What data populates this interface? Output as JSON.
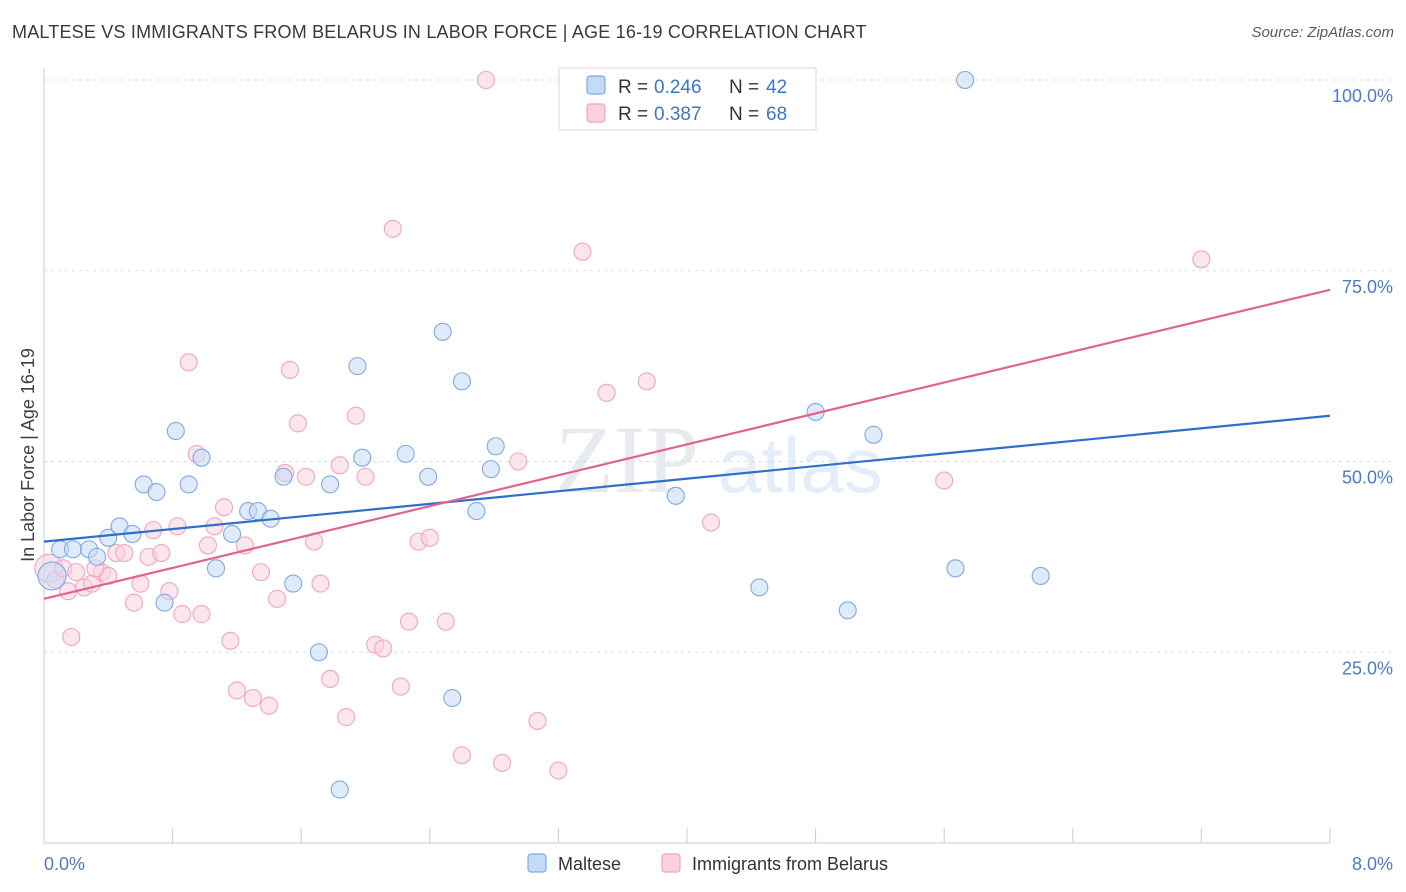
{
  "header": {
    "title": "MALTESE VS IMMIGRANTS FROM BELARUS IN LABOR FORCE | AGE 16-19 CORRELATION CHART",
    "source": "Source: ZipAtlas.com"
  },
  "watermark": {
    "part1": "ZIP",
    "part2": "atlas"
  },
  "chart_data": {
    "type": "scatter",
    "title": "MALTESE VS IMMIGRANTS FROM BELARUS IN LABOR FORCE | AGE 16-19 CORRELATION CHART",
    "ylabel": "In Labor Force | Age 16-19",
    "xlabel": "",
    "xlim": [
      0,
      8
    ],
    "ylim": [
      0,
      100
    ],
    "x_ticks_labels": {
      "left": "0.0%",
      "right": "8.0%"
    },
    "y_ticks": [
      {
        "value": 25,
        "label": "25.0%"
      },
      {
        "value": 50,
        "label": "50.0%"
      },
      {
        "value": 75,
        "label": "75.0%"
      },
      {
        "value": 100,
        "label": "100.0%"
      }
    ],
    "grid": true,
    "legend": {
      "position": "top-center",
      "entries": [
        {
          "r_label": "R =",
          "r": "0.246",
          "n_label": "N =",
          "n": "42"
        },
        {
          "r_label": "R =",
          "r": "0.387",
          "n_label": "N =",
          "n": "68"
        }
      ]
    },
    "series": [
      {
        "name": "Maltese",
        "color": "#7fa9e3",
        "fill": "#c5daf5",
        "line_color": "#2f6fcb",
        "trend": {
          "x0": 0.0,
          "y0": 39.5,
          "x1": 8.0,
          "y1": 56.0
        },
        "points": [
          [
            0.05,
            35.0
          ],
          [
            0.1,
            38.5
          ],
          [
            0.18,
            38.5
          ],
          [
            0.28,
            38.5
          ],
          [
            0.33,
            37.5
          ],
          [
            0.4,
            40.0
          ],
          [
            0.47,
            41.5
          ],
          [
            0.55,
            40.5
          ],
          [
            0.62,
            47.0
          ],
          [
            0.7,
            46.0
          ],
          [
            0.75,
            31.5
          ],
          [
            0.82,
            54.0
          ],
          [
            0.9,
            47.0
          ],
          [
            0.98,
            50.5
          ],
          [
            1.07,
            36.0
          ],
          [
            1.17,
            40.5
          ],
          [
            1.27,
            43.5
          ],
          [
            1.33,
            43.5
          ],
          [
            1.41,
            42.5
          ],
          [
            1.49,
            48.0
          ],
          [
            1.55,
            34.0
          ],
          [
            1.71,
            25.0
          ],
          [
            1.78,
            47.0
          ],
          [
            1.84,
            7.0
          ],
          [
            1.95,
            62.5
          ],
          [
            1.98,
            50.5
          ],
          [
            2.25,
            51.0
          ],
          [
            2.39,
            48.0
          ],
          [
            2.48,
            67.0
          ],
          [
            2.54,
            19.0
          ],
          [
            2.6,
            60.5
          ],
          [
            2.69,
            43.5
          ],
          [
            2.78,
            49.0
          ],
          [
            2.81,
            52.0
          ],
          [
            3.93,
            45.5
          ],
          [
            4.45,
            33.5
          ],
          [
            4.8,
            56.5
          ],
          [
            5.0,
            30.5
          ],
          [
            5.16,
            53.5
          ],
          [
            5.73,
            100.0
          ],
          [
            5.67,
            36.0
          ],
          [
            6.2,
            35.0
          ]
        ]
      },
      {
        "name": "Immigrants from Belarus",
        "color": "#f2a5bd",
        "fill": "#f9d1de",
        "line_color": "#e0648f",
        "trend": {
          "x0": 0.0,
          "y0": 32.0,
          "x1": 8.0,
          "y1": 72.5
        },
        "points": [
          [
            0.03,
            36.0
          ],
          [
            0.07,
            34.5
          ],
          [
            0.12,
            36.0
          ],
          [
            0.17,
            27.0
          ],
          [
            0.25,
            33.5
          ],
          [
            0.3,
            34.0
          ],
          [
            0.36,
            35.5
          ],
          [
            0.4,
            35.0
          ],
          [
            0.45,
            38.0
          ],
          [
            0.5,
            38.0
          ],
          [
            0.56,
            31.5
          ],
          [
            0.6,
            34.0
          ],
          [
            0.65,
            37.5
          ],
          [
            0.68,
            41.0
          ],
          [
            0.73,
            38.0
          ],
          [
            0.78,
            33.0
          ],
          [
            0.83,
            41.5
          ],
          [
            0.86,
            30.0
          ],
          [
            0.9,
            63.0
          ],
          [
            0.95,
            51.0
          ],
          [
            0.98,
            30.0
          ],
          [
            1.02,
            39.0
          ],
          [
            1.06,
            41.5
          ],
          [
            1.12,
            44.0
          ],
          [
            1.16,
            26.5
          ],
          [
            1.2,
            20.0
          ],
          [
            1.25,
            39.0
          ],
          [
            1.3,
            19.0
          ],
          [
            1.35,
            35.5
          ],
          [
            1.4,
            18.0
          ],
          [
            1.45,
            32.0
          ],
          [
            1.5,
            48.5
          ],
          [
            1.53,
            62.0
          ],
          [
            1.58,
            55.0
          ],
          [
            1.63,
            48.0
          ],
          [
            1.68,
            39.5
          ],
          [
            1.72,
            34.0
          ],
          [
            1.78,
            21.5
          ],
          [
            1.84,
            49.5
          ],
          [
            1.88,
            16.5
          ],
          [
            1.94,
            56.0
          ],
          [
            2.0,
            48.0
          ],
          [
            2.06,
            26.0
          ],
          [
            2.11,
            25.5
          ],
          [
            2.17,
            80.5
          ],
          [
            2.22,
            20.5
          ],
          [
            2.27,
            29.0
          ],
          [
            2.33,
            39.5
          ],
          [
            2.4,
            40.0
          ],
          [
            2.5,
            29.0
          ],
          [
            2.6,
            11.5
          ],
          [
            2.75,
            100.0
          ],
          [
            2.85,
            10.5
          ],
          [
            2.95,
            50.0
          ],
          [
            3.07,
            16.0
          ],
          [
            3.2,
            9.5
          ],
          [
            3.35,
            77.5
          ],
          [
            3.5,
            59.0
          ],
          [
            3.6,
            100.0
          ],
          [
            3.75,
            60.5
          ],
          [
            4.15,
            42.0
          ],
          [
            4.4,
            100.0
          ],
          [
            4.6,
            100.0
          ],
          [
            5.6,
            47.5
          ],
          [
            7.2,
            76.5
          ],
          [
            0.2,
            35.5
          ],
          [
            0.15,
            33.0
          ],
          [
            0.32,
            36.0
          ]
        ]
      }
    ]
  },
  "bottom_legend": [
    {
      "label": "Maltese"
    },
    {
      "label": "Immigrants from Belarus"
    }
  ]
}
